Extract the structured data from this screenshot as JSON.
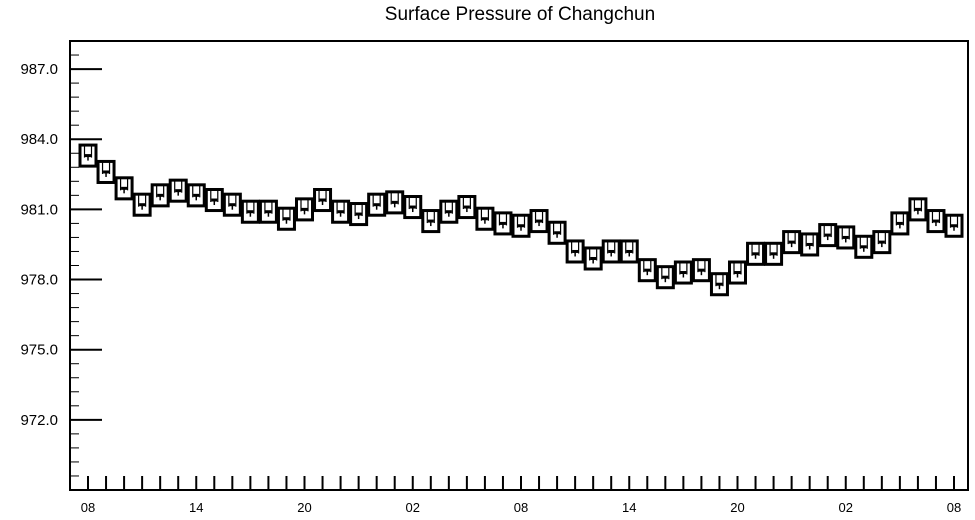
{
  "chart_data": {
    "type": "box",
    "title": "Surface Pressure of Changchun",
    "xlabel": "",
    "ylabel": "",
    "ylim": [
      969.0,
      988.2
    ],
    "y_ticks": [
      972.0,
      975.0,
      978.0,
      981.0,
      984.0,
      987.0
    ],
    "y_tick_labels": [
      "972.0",
      "975.0",
      "978.0",
      "981.0",
      "984.0",
      "987.0"
    ],
    "x_tick_labels": [
      "08",
      "14",
      "20",
      "02",
      "08",
      "14",
      "20",
      "02",
      "08"
    ],
    "grid": false,
    "legend": "none",
    "series": [
      {
        "values": [
          983.3,
          982.6,
          981.9,
          981.2,
          981.6,
          981.8,
          981.6,
          981.4,
          981.2,
          980.9,
          980.9,
          980.6,
          981.0,
          981.4,
          980.9,
          980.8,
          981.2,
          981.3,
          981.1,
          980.5,
          980.9,
          981.1,
          980.6,
          980.4,
          980.3,
          980.5,
          980.0,
          979.2,
          978.9,
          979.2,
          979.2,
          978.4,
          978.1,
          978.3,
          978.4,
          977.8,
          978.3,
          979.1,
          979.1,
          979.6,
          979.5,
          979.9,
          979.8,
          979.4,
          979.6,
          980.4,
          981.0,
          980.5,
          980.3
        ]
      }
    ]
  },
  "colors": {
    "foreground": "#000000",
    "background": "#ffffff"
  }
}
